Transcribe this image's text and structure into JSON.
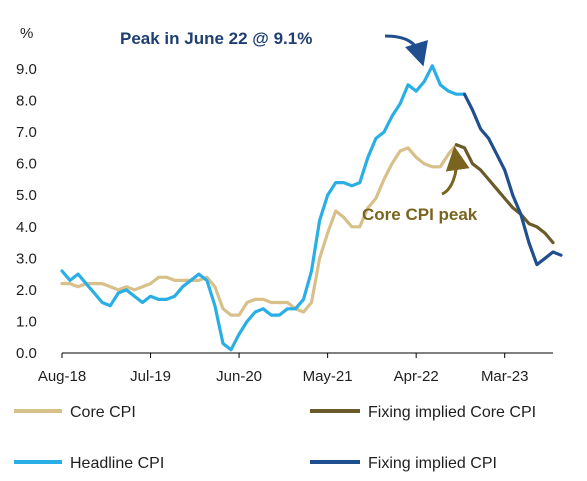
{
  "chart_data": {
    "type": "line",
    "ylabel": "%",
    "ylim": [
      0,
      9.0
    ],
    "yticks": [
      "0.0",
      "1.0",
      "2.0",
      "3.0",
      "4.0",
      "5.0",
      "6.0",
      "7.0",
      "8.0",
      "9.0"
    ],
    "xticks": [
      "Aug-18",
      "Jul-19",
      "Jun-20",
      "May-21",
      "Apr-22",
      "Mar-23"
    ],
    "xrange": [
      "2018-08",
      "2023-09"
    ],
    "grid": false,
    "legend_position": "bottom",
    "annotations": [
      {
        "id": "peak",
        "text": "Peak in June 22 @ 9.1%"
      },
      {
        "id": "core_peak",
        "text": "Core CPI peak"
      }
    ],
    "series": [
      {
        "name": "Core CPI",
        "color": "#d8c08b",
        "style": "solid",
        "points": [
          [
            "2018-08",
            2.2
          ],
          [
            "2018-09",
            2.2
          ],
          [
            "2018-10",
            2.1
          ],
          [
            "2018-11",
            2.2
          ],
          [
            "2018-12",
            2.2
          ],
          [
            "2019-01",
            2.2
          ],
          [
            "2019-02",
            2.1
          ],
          [
            "2019-03",
            2.0
          ],
          [
            "2019-04",
            2.1
          ],
          [
            "2019-05",
            2.0
          ],
          [
            "2019-06",
            2.1
          ],
          [
            "2019-07",
            2.2
          ],
          [
            "2019-08",
            2.4
          ],
          [
            "2019-09",
            2.4
          ],
          [
            "2019-10",
            2.3
          ],
          [
            "2019-11",
            2.3
          ],
          [
            "2019-12",
            2.3
          ],
          [
            "2020-01",
            2.3
          ],
          [
            "2020-02",
            2.4
          ],
          [
            "2020-03",
            2.1
          ],
          [
            "2020-04",
            1.4
          ],
          [
            "2020-05",
            1.2
          ],
          [
            "2020-06",
            1.2
          ],
          [
            "2020-07",
            1.6
          ],
          [
            "2020-08",
            1.7
          ],
          [
            "2020-09",
            1.7
          ],
          [
            "2020-10",
            1.6
          ],
          [
            "2020-11",
            1.6
          ],
          [
            "2020-12",
            1.6
          ],
          [
            "2021-01",
            1.4
          ],
          [
            "2021-02",
            1.3
          ],
          [
            "2021-03",
            1.6
          ],
          [
            "2021-04",
            3.0
          ],
          [
            "2021-05",
            3.8
          ],
          [
            "2021-06",
            4.5
          ],
          [
            "2021-07",
            4.3
          ],
          [
            "2021-08",
            4.0
          ],
          [
            "2021-09",
            4.0
          ],
          [
            "2021-10",
            4.6
          ],
          [
            "2021-11",
            4.9
          ],
          [
            "2021-12",
            5.5
          ],
          [
            "2022-01",
            6.0
          ],
          [
            "2022-02",
            6.4
          ],
          [
            "2022-03",
            6.5
          ],
          [
            "2022-04",
            6.2
          ],
          [
            "2022-05",
            6.0
          ],
          [
            "2022-06",
            5.9
          ],
          [
            "2022-07",
            5.9
          ],
          [
            "2022-08",
            6.3
          ],
          [
            "2022-09",
            6.6
          ]
        ]
      },
      {
        "name": "Fixing implied Core CPI",
        "color": "#6b5a2a",
        "style": "solid",
        "points": [
          [
            "2022-09",
            6.6
          ],
          [
            "2022-10",
            6.5
          ],
          [
            "2022-11",
            6.0
          ],
          [
            "2022-12",
            5.8
          ],
          [
            "2023-01",
            5.5
          ],
          [
            "2023-02",
            5.2
          ],
          [
            "2023-03",
            4.9
          ],
          [
            "2023-04",
            4.6
          ],
          [
            "2023-05",
            4.4
          ],
          [
            "2023-06",
            4.1
          ],
          [
            "2023-07",
            4.0
          ],
          [
            "2023-08",
            3.8
          ],
          [
            "2023-09",
            3.5
          ]
        ]
      },
      {
        "name": "Headline CPI",
        "color": "#2aaee6",
        "style": "solid",
        "points": [
          [
            "2018-08",
            2.6
          ],
          [
            "2018-09",
            2.3
          ],
          [
            "2018-10",
            2.5
          ],
          [
            "2018-11",
            2.2
          ],
          [
            "2018-12",
            1.9
          ],
          [
            "2019-01",
            1.6
          ],
          [
            "2019-02",
            1.5
          ],
          [
            "2019-03",
            1.9
          ],
          [
            "2019-04",
            2.0
          ],
          [
            "2019-05",
            1.8
          ],
          [
            "2019-06",
            1.6
          ],
          [
            "2019-07",
            1.8
          ],
          [
            "2019-08",
            1.7
          ],
          [
            "2019-09",
            1.7
          ],
          [
            "2019-10",
            1.8
          ],
          [
            "2019-11",
            2.1
          ],
          [
            "2019-12",
            2.3
          ],
          [
            "2020-01",
            2.5
          ],
          [
            "2020-02",
            2.3
          ],
          [
            "2020-03",
            1.5
          ],
          [
            "2020-04",
            0.3
          ],
          [
            "2020-05",
            0.1
          ],
          [
            "2020-06",
            0.6
          ],
          [
            "2020-07",
            1.0
          ],
          [
            "2020-08",
            1.3
          ],
          [
            "2020-09",
            1.4
          ],
          [
            "2020-10",
            1.2
          ],
          [
            "2020-11",
            1.2
          ],
          [
            "2020-12",
            1.4
          ],
          [
            "2021-01",
            1.4
          ],
          [
            "2021-02",
            1.7
          ],
          [
            "2021-03",
            2.6
          ],
          [
            "2021-04",
            4.2
          ],
          [
            "2021-05",
            5.0
          ],
          [
            "2021-06",
            5.4
          ],
          [
            "2021-07",
            5.4
          ],
          [
            "2021-08",
            5.3
          ],
          [
            "2021-09",
            5.4
          ],
          [
            "2021-10",
            6.2
          ],
          [
            "2021-11",
            6.8
          ],
          [
            "2021-12",
            7.0
          ],
          [
            "2022-01",
            7.5
          ],
          [
            "2022-02",
            7.9
          ],
          [
            "2022-03",
            8.5
          ],
          [
            "2022-04",
            8.3
          ],
          [
            "2022-05",
            8.6
          ],
          [
            "2022-06",
            9.1
          ],
          [
            "2022-07",
            8.5
          ],
          [
            "2022-08",
            8.3
          ],
          [
            "2022-09",
            8.2
          ],
          [
            "2022-10",
            8.2
          ]
        ]
      },
      {
        "name": "Fixing implied CPI",
        "color": "#1f4f8f",
        "style": "solid",
        "points": [
          [
            "2022-10",
            8.2
          ],
          [
            "2022-11",
            7.7
          ],
          [
            "2022-12",
            7.1
          ],
          [
            "2023-01",
            6.8
          ],
          [
            "2023-02",
            6.3
          ],
          [
            "2023-03",
            5.8
          ],
          [
            "2023-04",
            5.0
          ],
          [
            "2023-05",
            4.4
          ],
          [
            "2023-06",
            3.5
          ],
          [
            "2023-07",
            2.8
          ],
          [
            "2023-08",
            3.0
          ],
          [
            "2023-09",
            3.2
          ],
          [
            "2023-10",
            3.1
          ]
        ]
      }
    ]
  },
  "legend": [
    {
      "label": "Core CPI",
      "color": "#d8c08b"
    },
    {
      "label": "Fixing implied Core CPI",
      "color": "#6b5a2a"
    },
    {
      "label": "Headline CPI",
      "color": "#2aaee6"
    },
    {
      "label": "Fixing implied CPI",
      "color": "#1f4f8f"
    }
  ]
}
